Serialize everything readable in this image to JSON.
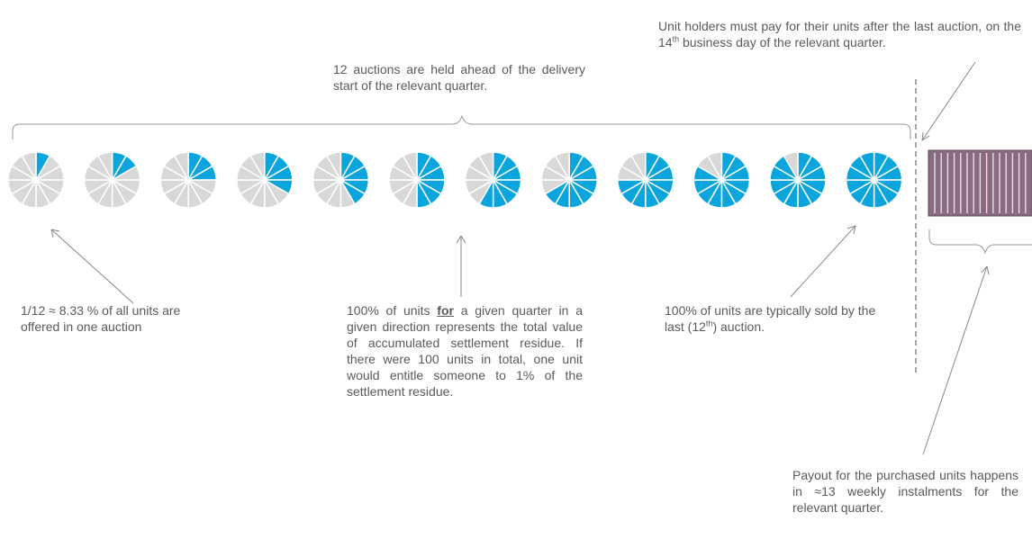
{
  "colors": {
    "sold": "#0aa5dc",
    "unsold": "#d8d8d8",
    "segment_line": "#ffffff",
    "payout_bar": "#8a6a80",
    "payout_stripe": "#e8e0e6",
    "annotation": "#777777"
  },
  "auctions": {
    "count": 12,
    "segments_per_circle": 12,
    "sold_segments": [
      1,
      2,
      3,
      4,
      5,
      6,
      7,
      8,
      9,
      10,
      11,
      12
    ]
  },
  "notes": {
    "auctions_held": "12 auctions are held ahead of the delivery start of the relevant quarter.",
    "unit_holders_pre": "Unit holders must pay for their units after the last auction, on the 14",
    "unit_holders_sup": "th",
    "unit_holders_post": " business day of the relevant quarter.",
    "one_twelfth": "1/12 ≈ 8.33 % of all units are offered in one auction",
    "hundred_pre": "100% of units ",
    "hundred_bold": "for",
    "hundred_post": " a given quarter in a given direction represents the total value of accumulated settlement residue. If there were 100 units in total, one unit would entitle someone to 1% of the settlement residue.",
    "sold_last_pre": "100% of units are typically sold by the last (12",
    "sold_last_sup": "th",
    "sold_last_post": ") auction.",
    "payout": "Payout for the purchased units happens in ≈13 weekly instalments for the relevant quarter."
  }
}
